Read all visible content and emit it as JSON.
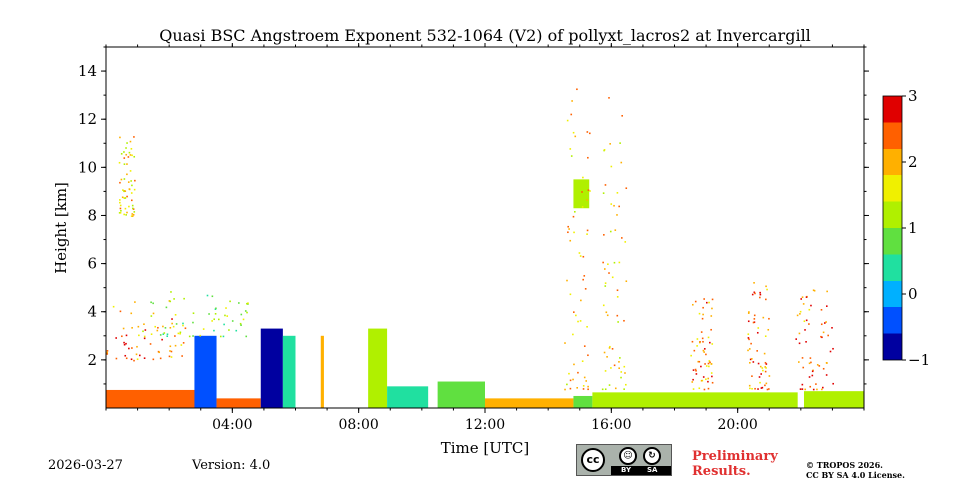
{
  "chart_data": {
    "type": "heatmap",
    "title": "Quasi BSC Angstroem Exponent 532-1064 (V2) of pollyxt_lacros2 at Invercargill",
    "xlabel": "Time [UTC]",
    "ylabel": "Height [km]",
    "xlim_hours": [
      0,
      24
    ],
    "ylim_km": [
      0,
      15
    ],
    "x_ticks": [
      {
        "value": 4,
        "label": "04:00"
      },
      {
        "value": 8,
        "label": "08:00"
      },
      {
        "value": 12,
        "label": "12:00"
      },
      {
        "value": 16,
        "label": "16:00"
      },
      {
        "value": 20,
        "label": "20:00"
      }
    ],
    "y_ticks": [
      {
        "value": 2,
        "label": "2"
      },
      {
        "value": 4,
        "label": "4"
      },
      {
        "value": 6,
        "label": "6"
      },
      {
        "value": 8,
        "label": "8"
      },
      {
        "value": 10,
        "label": "10"
      },
      {
        "value": 12,
        "label": "12"
      },
      {
        "value": 14,
        "label": "14"
      }
    ],
    "colorbar": {
      "min": -1,
      "max": 3,
      "ticks": [
        {
          "value": 3,
          "label": "3"
        },
        {
          "value": 2,
          "label": "2"
        },
        {
          "value": 1,
          "label": "1"
        },
        {
          "value": 0,
          "label": "0"
        },
        {
          "value": -1,
          "label": "−1"
        }
      ],
      "colormap": [
        "#0000a0",
        "#0050ff",
        "#00b0ff",
        "#20e0a0",
        "#60e040",
        "#b0f000",
        "#f0f000",
        "#ffb000",
        "#ff6000",
        "#e00000"
      ]
    },
    "regions": [
      {
        "t": [
          0.0,
          3.3
        ],
        "h": [
          0.0,
          0.75
        ],
        "value": 2.3
      },
      {
        "t": [
          2.8,
          3.5
        ],
        "h": [
          0.0,
          3.0
        ],
        "value": -0.6
      },
      {
        "t": [
          3.5,
          4.9
        ],
        "h": [
          0.0,
          0.4
        ],
        "value": 2.2
      },
      {
        "t": [
          4.9,
          5.6
        ],
        "h": [
          0.0,
          3.3
        ],
        "value": -0.7
      },
      {
        "t": [
          5.6,
          6.0
        ],
        "h": [
          0.0,
          3.0
        ],
        "value": 0.3
      },
      {
        "t": [
          6.8,
          6.9
        ],
        "h": [
          0.0,
          3.0
        ],
        "value": 2.0
      },
      {
        "t": [
          8.3,
          8.9
        ],
        "h": [
          0.0,
          3.3
        ],
        "value": 1.2
      },
      {
        "t": [
          8.9,
          10.2
        ],
        "h": [
          0.0,
          0.9
        ],
        "value": 0.3
      },
      {
        "t": [
          10.5,
          12.0
        ],
        "h": [
          0.0,
          1.1
        ],
        "value": 0.6
      },
      {
        "t": [
          12.0,
          14.8
        ],
        "h": [
          0.0,
          0.4
        ],
        "value": 1.8
      },
      {
        "t": [
          14.8,
          15.4
        ],
        "h": [
          0.0,
          0.5
        ],
        "value": 0.9
      },
      {
        "t": [
          15.4,
          21.9
        ],
        "h": [
          0.0,
          0.65
        ],
        "value": 1.0
      },
      {
        "t": [
          22.1,
          24.0
        ],
        "h": [
          0.0,
          0.7
        ],
        "value": 1.1
      },
      {
        "t": [
          14.8,
          15.3
        ],
        "h": [
          8.3,
          9.5
        ],
        "value": 1.1
      }
    ],
    "scatter": [
      {
        "t": [
          0.0,
          2.5
        ],
        "h": [
          2.0,
          4.5
        ],
        "value": 2.2
      },
      {
        "t": [
          1.0,
          4.5
        ],
        "h": [
          3.0,
          5.0
        ],
        "value": 1.0
      },
      {
        "t": [
          0.4,
          0.9
        ],
        "h": [
          8.0,
          11.5
        ],
        "value": 1.8
      },
      {
        "t": [
          14.5,
          15.3
        ],
        "h": [
          0.8,
          13.5
        ],
        "value": 1.9
      },
      {
        "t": [
          15.7,
          16.5
        ],
        "h": [
          0.8,
          13.0
        ],
        "value": 1.9
      },
      {
        "t": [
          18.5,
          19.2
        ],
        "h": [
          0.8,
          4.8
        ],
        "value": 2.2
      },
      {
        "t": [
          20.3,
          21.0
        ],
        "h": [
          0.8,
          5.5
        ],
        "value": 2.3
      },
      {
        "t": [
          21.8,
          23.0
        ],
        "h": [
          0.8,
          5.0
        ],
        "value": 2.4
      }
    ]
  },
  "footer": {
    "date": "2026-03-27",
    "version": "Version: 4.0",
    "preliminary_line1": "Preliminary",
    "preliminary_line2": "Results.",
    "copyright_line1": "© TROPOS 2026.",
    "copyright_line2": "CC BY SA 4.0 License.",
    "license_badge": {
      "cc": "cc",
      "by": "BY",
      "sa": "SA",
      "by_glyph": "☺",
      "sa_glyph": "↻"
    }
  }
}
